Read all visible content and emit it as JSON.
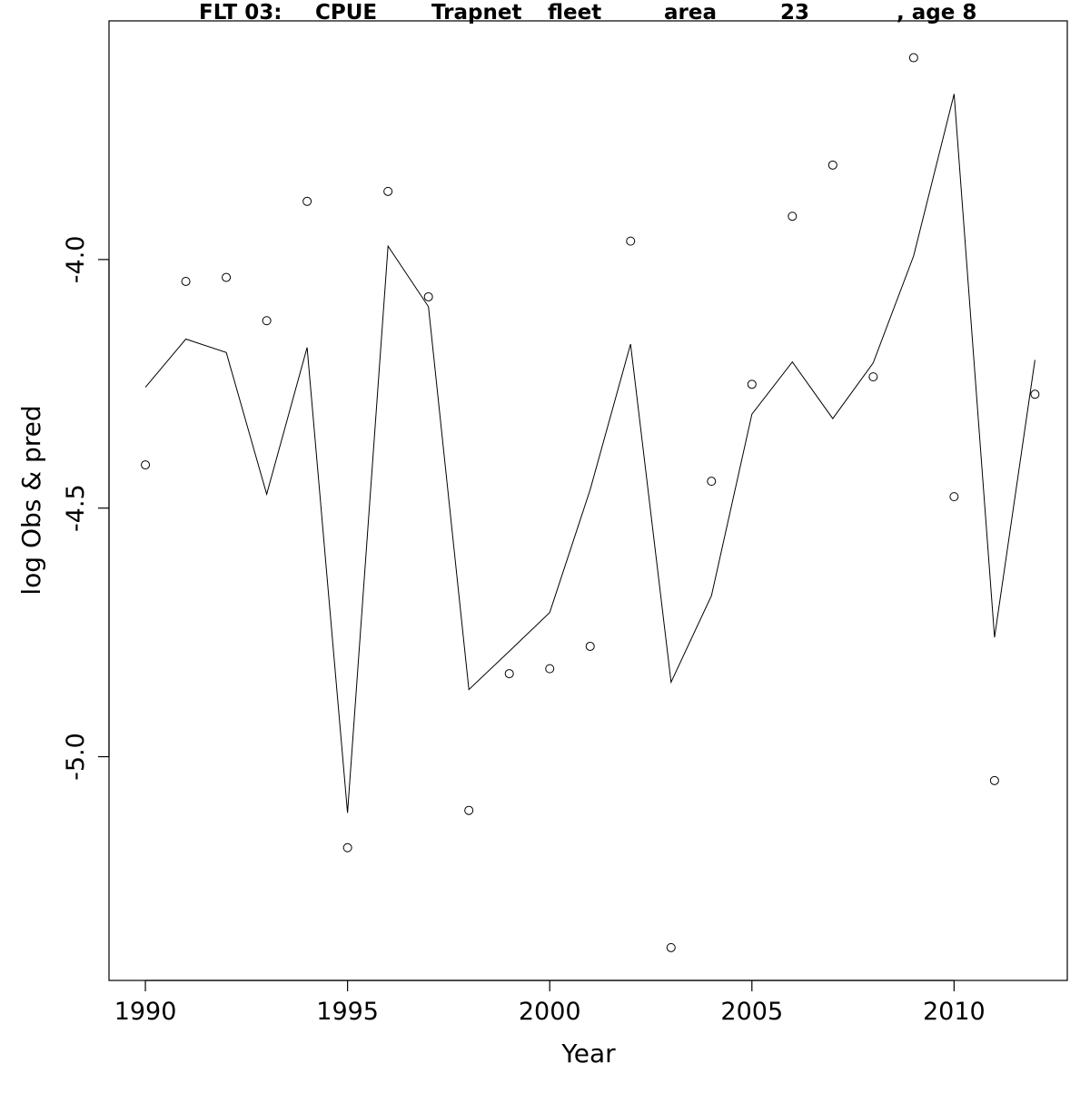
{
  "chart_data": {
    "type": "line",
    "title_parts": [
      "FLT 03:",
      "CPUE",
      "Trapnet",
      "fleet",
      "area",
      "23",
      ", age 8"
    ],
    "xlabel": "Year",
    "ylabel": "log Obs & pred",
    "xlim": [
      1989.1,
      2012.8
    ],
    "ylim": [
      -5.45,
      -3.52
    ],
    "x_ticks": [
      1990,
      1995,
      2000,
      2005,
      2010
    ],
    "x_tick_labels": [
      "1990",
      "1995",
      "2000",
      "2005",
      "2010"
    ],
    "y_ticks": [
      -4.0,
      -4.5,
      -5.0
    ],
    "y_tick_labels": [
      "-4.0",
      "-4.5",
      "-5.0"
    ],
    "grid": false,
    "x": [
      1990,
      1991,
      1992,
      1993,
      1994,
      1995,
      1996,
      1997,
      1998,
      1999,
      2000,
      2001,
      2002,
      2003,
      2004,
      2005,
      2006,
      2007,
      2008,
      2009,
      2010,
      2011,
      2012
    ],
    "series": [
      {
        "role": "observed",
        "style": "points",
        "values": [
          -4.413,
          -4.044,
          -4.036,
          -4.123,
          -3.883,
          -5.183,
          -3.863,
          -4.075,
          -5.108,
          -4.833,
          -4.823,
          -4.778,
          -3.963,
          -5.384,
          -4.446,
          -4.251,
          -3.913,
          -3.81,
          -4.236,
          -3.594,
          -4.477,
          -5.048,
          -4.271
        ]
      },
      {
        "role": "predicted",
        "style": "line",
        "values": [
          -4.257,
          -4.16,
          -4.187,
          -4.472,
          -4.177,
          -5.113,
          -3.973,
          -4.095,
          -4.865,
          -4.788,
          -4.71,
          -4.463,
          -4.17,
          -4.85,
          -4.676,
          -4.311,
          -4.206,
          -4.32,
          -4.208,
          -3.993,
          -3.667,
          -4.76,
          -4.202
        ]
      }
    ]
  }
}
